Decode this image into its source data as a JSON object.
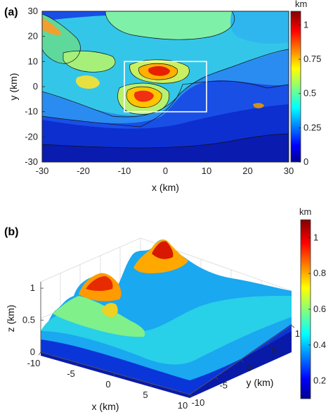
{
  "chart_data": [
    {
      "panel": "(a)",
      "type": "heatmap",
      "subtype": "contour-map",
      "xlabel": "x (km)",
      "ylabel": "y (km)",
      "xlim": [
        -30,
        30
      ],
      "ylim": [
        -30,
        30
      ],
      "xticks": [
        -30,
        -20,
        -10,
        0,
        10,
        20,
        30
      ],
      "yticks": [
        -30,
        -20,
        -10,
        0,
        10,
        20,
        30
      ],
      "colorbar": {
        "unit": "km",
        "ticks": [
          0,
          0.25,
          0.5,
          0.75,
          1
        ],
        "range": [
          0,
          1.1
        ]
      },
      "highlight_box": {
        "x": [
          -10,
          10
        ],
        "y": [
          -10,
          10
        ],
        "color": "#ffffff"
      },
      "features": [
        {
          "x": -4,
          "y": 7,
          "value": 1.05
        },
        {
          "x": -5,
          "y": -2,
          "value": 0.95
        },
        {
          "x": -20,
          "y": 4,
          "value": 0.55
        },
        {
          "x": -28,
          "y": 25,
          "value": 0.85
        },
        {
          "x": 23,
          "y": -7,
          "value": 0.9
        },
        {
          "x": -5,
          "y": 25,
          "value": 0.35
        }
      ]
    },
    {
      "panel": "(b)",
      "type": "surface",
      "xlabel": "x (km)",
      "ylabel": "y (km)",
      "zlabel": "z (km)",
      "xlim": [
        -10,
        10
      ],
      "ylim": [
        -10,
        10
      ],
      "zlim": [
        0,
        1.1
      ],
      "xticks": [
        -10,
        -5,
        0,
        5,
        10
      ],
      "yticks": [
        -10,
        -5,
        0,
        5,
        10
      ],
      "zticks": [
        0,
        0.5,
        1
      ],
      "colorbar": {
        "unit": "km",
        "ticks": [
          0.2,
          0.4,
          0.6,
          0.8,
          1
        ],
        "range": [
          0.1,
          1.1
        ]
      }
    }
  ]
}
